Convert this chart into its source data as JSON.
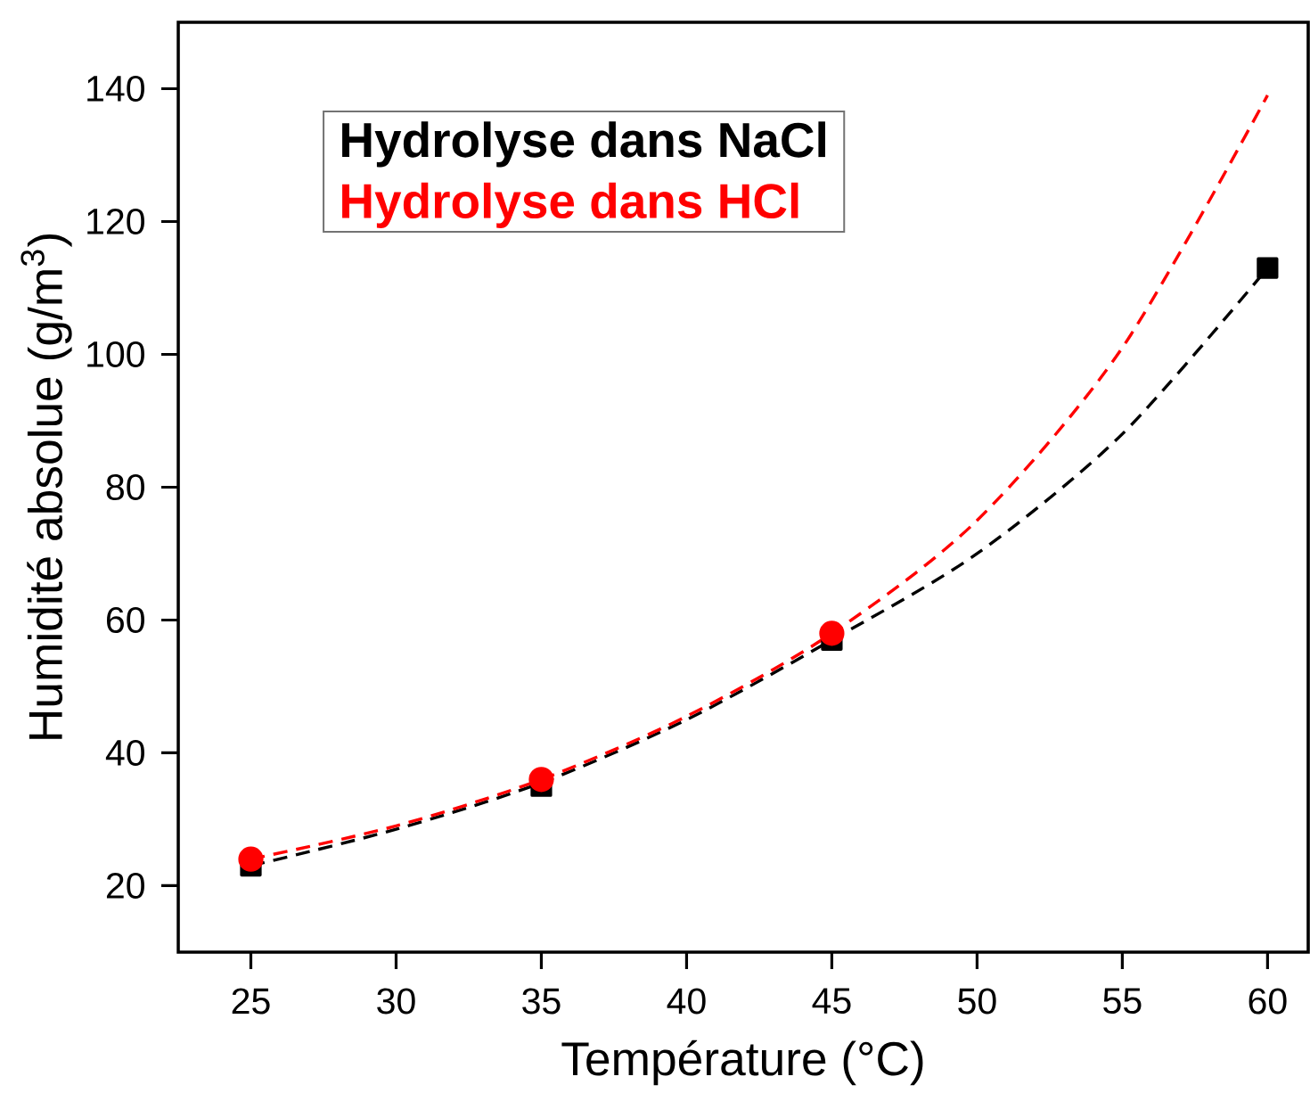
{
  "chart_data": {
    "type": "scatter",
    "xlabel": "Température (°C)",
    "ylabel": "Humidité absolue (g/m$^{3}$)",
    "xlim": [
      22.5,
      61.4
    ],
    "ylim": [
      10,
      150
    ],
    "xticks": [
      25,
      30,
      35,
      40,
      45,
      50,
      55,
      60
    ],
    "yticks": [
      20,
      40,
      60,
      80,
      100,
      120,
      140
    ],
    "legend": "top left",
    "series": [
      {
        "name": "Hydrolyse dans NaCl",
        "color": "#000000",
        "marker": "square",
        "x": [
          25,
          35,
          45,
          60
        ],
        "values": [
          23,
          35,
          57,
          113
        ]
      },
      {
        "name": "Hydrolyse dans HCl",
        "color": "#ff0000",
        "marker": "circle",
        "x": [
          25,
          35,
          45
        ],
        "values": [
          24,
          36,
          58
        ]
      },
      {
        "type": "line",
        "color": "#000000",
        "marker": "none",
        "line_style": "dashed",
        "x": [
          25,
          30,
          35,
          40,
          45,
          50,
          55,
          60
        ],
        "values": [
          23,
          28.5,
          35.5,
          45,
          57,
          70,
          88,
          113
        ]
      },
      {
        "type": "line",
        "color": "#ff0000",
        "marker": "none",
        "line_style": "dashed",
        "x": [
          25,
          30,
          35,
          40,
          45,
          50,
          55,
          60
        ],
        "values": [
          24,
          29,
          36,
          45.5,
          58,
          75,
          101,
          139
        ]
      }
    ]
  }
}
